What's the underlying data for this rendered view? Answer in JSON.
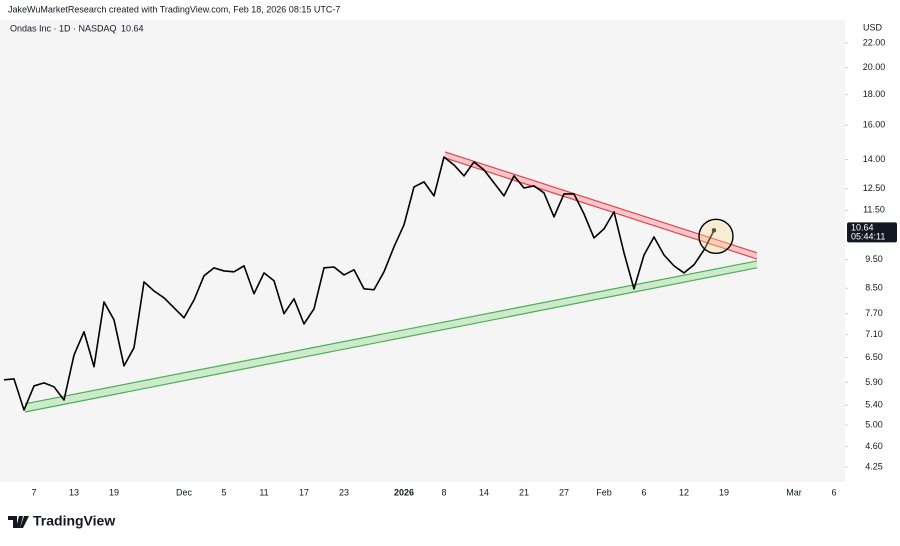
{
  "chart_data": {
    "type": "line",
    "header": "JakeWuMarketResearch created with TradingView.com, Feb 18, 2026 08:15 UTC-7",
    "title": "Ondas Inc · 1D · NASDAQ",
    "currency": "USD",
    "countdown": "05:44:11",
    "brand": "TradingView",
    "color": "#000000",
    "log_scale": true,
    "categories": [
      null,
      null,
      null,
      "7",
      null,
      null,
      null,
      "13",
      null,
      null,
      null,
      "19",
      null,
      null,
      null,
      null,
      null,
      null,
      "Dec",
      null,
      null,
      null,
      "5",
      null,
      null,
      null,
      "11",
      null,
      null,
      null,
      "17",
      null,
      null,
      null,
      "23",
      null,
      null,
      null,
      null,
      null,
      "2026",
      null,
      null,
      null,
      "8",
      null,
      null,
      null,
      "14",
      null,
      null,
      null,
      "21",
      null,
      null,
      null,
      "27",
      null,
      null,
      null,
      "Feb",
      null,
      null,
      null,
      "6",
      null,
      null,
      null,
      "12",
      null,
      null,
      null,
      "19",
      null,
      null,
      null,
      null,
      null,
      null,
      "Mar",
      null,
      null,
      null,
      "6",
      null
    ],
    "values": [
      5.96,
      5.98,
      5.3,
      5.82,
      5.89,
      5.8,
      5.51,
      6.56,
      7.18,
      6.27,
      8.06,
      7.52,
      6.29,
      6.75,
      8.71,
      8.41,
      8.19,
      7.88,
      7.58,
      8.12,
      8.92,
      9.2,
      9.09,
      9.06,
      9.27,
      8.32,
      9.02,
      8.75,
      7.7,
      8.16,
      7.4,
      7.85,
      9.2,
      9.23,
      8.95,
      9.13,
      8.48,
      8.45,
      9.06,
      9.98,
      10.87,
      12.59,
      12.84,
      12.16,
      14.14,
      13.71,
      13.14,
      13.87,
      13.45,
      12.79,
      12.16,
      13.14,
      12.54,
      12.64,
      12.3,
      11.21,
      12.25,
      12.25,
      11.34,
      10.33,
      10.7,
      11.43,
      9.75,
      8.48,
      9.67,
      10.37,
      9.67,
      9.27,
      9.02,
      9.31,
      9.86,
      10.64,
      null,
      null,
      null,
      null,
      null,
      null,
      null,
      null,
      null,
      null,
      null,
      null,
      null
    ],
    "ylim": [
      4.01,
      24.05
    ],
    "yticks": [
      {
        "value": 22,
        "label": "22.00"
      },
      {
        "value": 20,
        "label": "20.00"
      },
      {
        "value": 18,
        "label": "18.00"
      },
      {
        "value": 16,
        "label": "16.00"
      },
      {
        "value": 14,
        "label": "14.00"
      },
      {
        "value": 12.5,
        "label": "12.50"
      },
      {
        "value": 11.5,
        "label": "11.50"
      },
      {
        "value": 9.5,
        "label": "9.50"
      },
      {
        "value": 8.5,
        "label": "8.50"
      },
      {
        "value": 7.7,
        "label": "7.70"
      },
      {
        "value": 7.1,
        "label": "7.10"
      },
      {
        "value": 6.5,
        "label": "6.50"
      },
      {
        "value": 5.9,
        "label": "5.90"
      },
      {
        "value": 5.4,
        "label": "5.40"
      },
      {
        "value": 5,
        "label": "5.00"
      },
      {
        "value": 4.6,
        "label": "4.60"
      },
      {
        "value": 4.25,
        "label": "4.25"
      }
    ],
    "trendlines": [
      {
        "color": "#e0464e",
        "fill": "#f7c6c9",
        "upper": [
          14.42,
          9.75
        ],
        "lower": [
          14.09,
          9.52
        ]
      },
      {
        "color": "#4caf50",
        "fill": "#cdeacd",
        "upper": [
          5.43,
          9.45
        ],
        "lower": [
          5.26,
          9.2
        ]
      }
    ]
  }
}
